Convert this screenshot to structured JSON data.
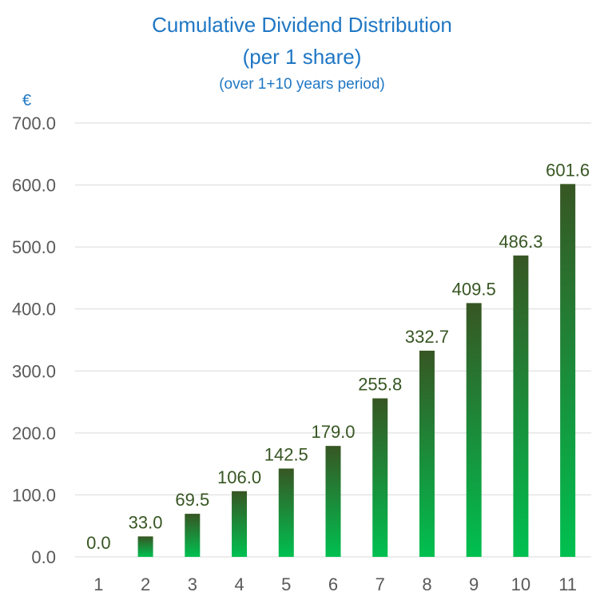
{
  "chart_data": {
    "type": "bar",
    "title": "Cumulative Dividend Distribution",
    "title_line2": "(per 1 share)",
    "subtitle": "(over 1+10 years period)",
    "ylabel": "€",
    "xlabel": "",
    "categories": [
      "1",
      "2",
      "3",
      "4",
      "5",
      "6",
      "7",
      "8",
      "9",
      "10",
      "11"
    ],
    "values": [
      0.0,
      33.0,
      69.5,
      106.0,
      142.5,
      179.0,
      255.8,
      332.7,
      409.5,
      486.3,
      601.6
    ],
    "data_labels": [
      "0.0",
      "33.0",
      "69.5",
      "106.0",
      "142.5",
      "179.0",
      "255.8",
      "332.7",
      "409.5",
      "486.3",
      "601.6"
    ],
    "ylim": [
      0,
      700
    ],
    "yticks": [
      0,
      100,
      200,
      300,
      400,
      500,
      600,
      700
    ],
    "ytick_labels": [
      "0.0",
      "100.0",
      "200.0",
      "300.0",
      "400.0",
      "500.0",
      "600.0",
      "700.0"
    ],
    "grid": true,
    "legend": "none",
    "colors": {
      "title": "#1f77c4",
      "bar_top": "#375623",
      "bar_bottom": "#00c050",
      "data_label": "#375623",
      "tick_label": "#595959",
      "gridline": "#d9d9d9"
    }
  }
}
